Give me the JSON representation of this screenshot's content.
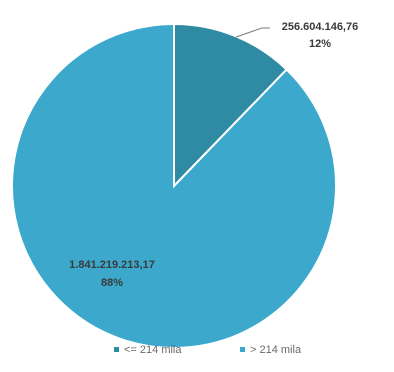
{
  "chart_data": {
    "type": "pie",
    "title": "",
    "slices": [
      {
        "name": "<= 214 mila",
        "value": 256604146.76,
        "value_label": "256.604.146,76",
        "percent_label": "12%",
        "color": "#2f8aa4"
      },
      {
        "name": "> 214 mila",
        "value": 1841219213.17,
        "value_label": "1.841.219.213,17",
        "percent_label": "88%",
        "color": "#3ba8cc"
      }
    ],
    "start_angle_deg": 0,
    "direction": "clockwise",
    "legend_position": "bottom"
  }
}
